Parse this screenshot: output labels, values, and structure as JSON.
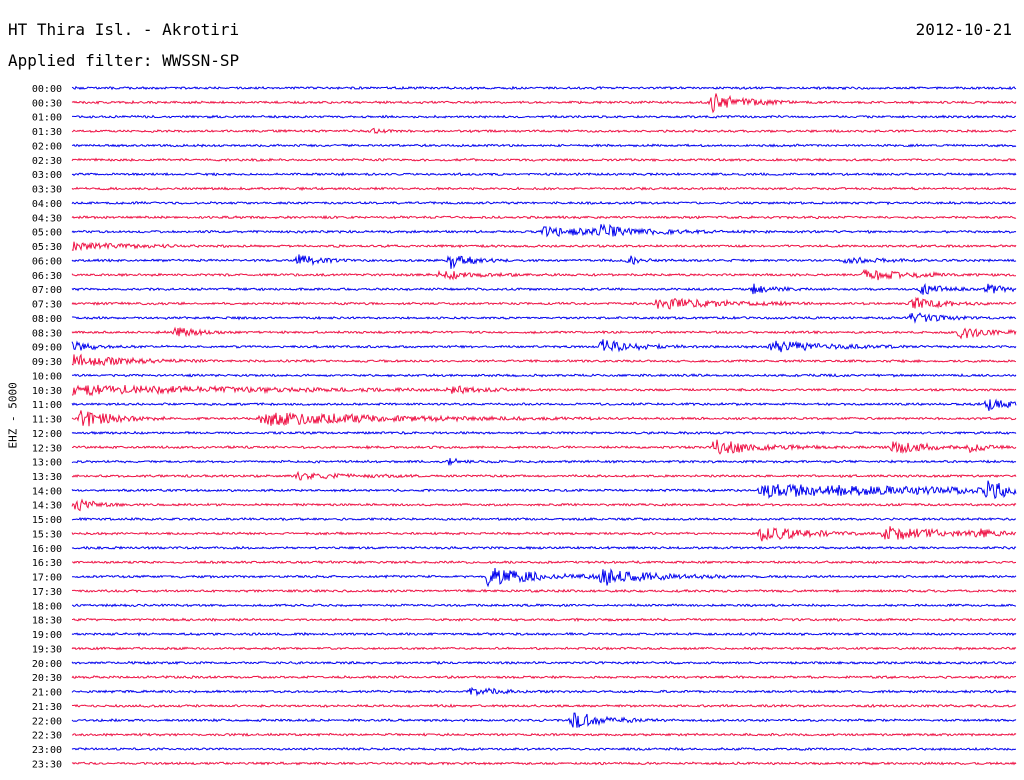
{
  "header": {
    "title": "HT Thira Isl. - Akrotiri",
    "date": "2012-10-21",
    "filter": "Applied filter: WWSSN-SP"
  },
  "chart_data": {
    "type": "line",
    "title": "HT Thira Isl. - Akrotiri",
    "subtitle": "Applied filter: WWSSN-SP",
    "ylabel": "EHZ - 5000",
    "xlabel": "",
    "grid": false,
    "legend": "none",
    "trace_colors": [
      "#0000ee",
      "#ee1144"
    ],
    "x_range": [
      0,
      1
    ],
    "row_labels": [
      "00:00",
      "00:30",
      "01:00",
      "01:30",
      "02:00",
      "02:30",
      "03:00",
      "03:30",
      "04:00",
      "04:30",
      "05:00",
      "05:30",
      "06:00",
      "06:30",
      "07:00",
      "07:30",
      "08:00",
      "08:30",
      "09:00",
      "09:30",
      "10:00",
      "10:30",
      "11:00",
      "11:30",
      "12:00",
      "12:30",
      "13:00",
      "13:30",
      "14:00",
      "14:30",
      "15:00",
      "15:30",
      "16:00",
      "16:30",
      "17:00",
      "17:30",
      "18:00",
      "18:30",
      "19:00",
      "19:30",
      "20:00",
      "20:30",
      "21:00",
      "21:30",
      "22:00",
      "22:30",
      "23:00",
      "23:30"
    ],
    "noise_amplitude": 1.3,
    "events": [
      {
        "row": 1,
        "x": 0.678,
        "amp": 10,
        "dur": 0.03
      },
      {
        "row": 3,
        "x": 0.32,
        "amp": 2,
        "dur": 0.01
      },
      {
        "row": 10,
        "x": 0.5,
        "amp": 4,
        "dur": 0.08
      },
      {
        "row": 10,
        "x": 0.56,
        "amp": 5,
        "dur": 0.03
      },
      {
        "row": 11,
        "x": 0.0,
        "amp": 4,
        "dur": 0.05
      },
      {
        "row": 12,
        "x": 0.24,
        "amp": 6,
        "dur": 0.02
      },
      {
        "row": 12,
        "x": 0.4,
        "amp": 8,
        "dur": 0.02
      },
      {
        "row": 12,
        "x": 0.59,
        "amp": 5,
        "dur": 0.01
      },
      {
        "row": 12,
        "x": 0.82,
        "amp": 3,
        "dur": 0.03
      },
      {
        "row": 13,
        "x": 0.39,
        "amp": 5,
        "dur": 0.03
      },
      {
        "row": 13,
        "x": 0.84,
        "amp": 6,
        "dur": 0.04
      },
      {
        "row": 14,
        "x": 0.72,
        "amp": 5,
        "dur": 0.02
      },
      {
        "row": 14,
        "x": 0.9,
        "amp": 6,
        "dur": 0.02
      },
      {
        "row": 14,
        "x": 0.97,
        "amp": 5,
        "dur": 0.02
      },
      {
        "row": 15,
        "x": 0.62,
        "amp": 6,
        "dur": 0.06
      },
      {
        "row": 15,
        "x": 0.89,
        "amp": 6,
        "dur": 0.03
      },
      {
        "row": 16,
        "x": 0.89,
        "amp": 5,
        "dur": 0.03
      },
      {
        "row": 17,
        "x": 0.11,
        "amp": 5,
        "dur": 0.02
      },
      {
        "row": 17,
        "x": 0.94,
        "amp": 6,
        "dur": 0.03
      },
      {
        "row": 18,
        "x": 0.0,
        "amp": 5,
        "dur": 0.02
      },
      {
        "row": 18,
        "x": 0.56,
        "amp": 7,
        "dur": 0.03
      },
      {
        "row": 18,
        "x": 0.74,
        "amp": 6,
        "dur": 0.05
      },
      {
        "row": 19,
        "x": 0.0,
        "amp": 6,
        "dur": 0.05
      },
      {
        "row": 21,
        "x": 0.0,
        "amp": 5,
        "dur": 0.16
      },
      {
        "row": 21,
        "x": 0.4,
        "amp": 3,
        "dur": 0.03
      },
      {
        "row": 22,
        "x": 0.97,
        "amp": 7,
        "dur": 0.02
      },
      {
        "row": 23,
        "x": 0.01,
        "amp": 9,
        "dur": 0.03
      },
      {
        "row": 23,
        "x": 0.2,
        "amp": 7,
        "dur": 0.12
      },
      {
        "row": 25,
        "x": 0.68,
        "amp": 8,
        "dur": 0.04
      },
      {
        "row": 25,
        "x": 0.87,
        "amp": 7,
        "dur": 0.03
      },
      {
        "row": 25,
        "x": 0.95,
        "amp": 4,
        "dur": 0.02
      },
      {
        "row": 26,
        "x": 0.4,
        "amp": 4,
        "dur": 0.01
      },
      {
        "row": 27,
        "x": 0.24,
        "amp": 3,
        "dur": 0.05
      },
      {
        "row": 28,
        "x": 0.73,
        "amp": 7,
        "dur": 0.18
      },
      {
        "row": 28,
        "x": 0.97,
        "amp": 9,
        "dur": 0.02
      },
      {
        "row": 29,
        "x": 0.0,
        "amp": 7,
        "dur": 0.02
      },
      {
        "row": 31,
        "x": 0.73,
        "amp": 8,
        "dur": 0.04
      },
      {
        "row": 31,
        "x": 0.86,
        "amp": 7,
        "dur": 0.06
      },
      {
        "row": 31,
        "x": 0.96,
        "amp": 4,
        "dur": 0.01
      },
      {
        "row": 34,
        "x": 0.44,
        "amp": 9,
        "dur": 0.05
      },
      {
        "row": 34,
        "x": 0.56,
        "amp": 8,
        "dur": 0.05
      },
      {
        "row": 42,
        "x": 0.42,
        "amp": 4,
        "dur": 0.03
      },
      {
        "row": 44,
        "x": 0.53,
        "amp": 9,
        "dur": 0.03
      }
    ]
  }
}
